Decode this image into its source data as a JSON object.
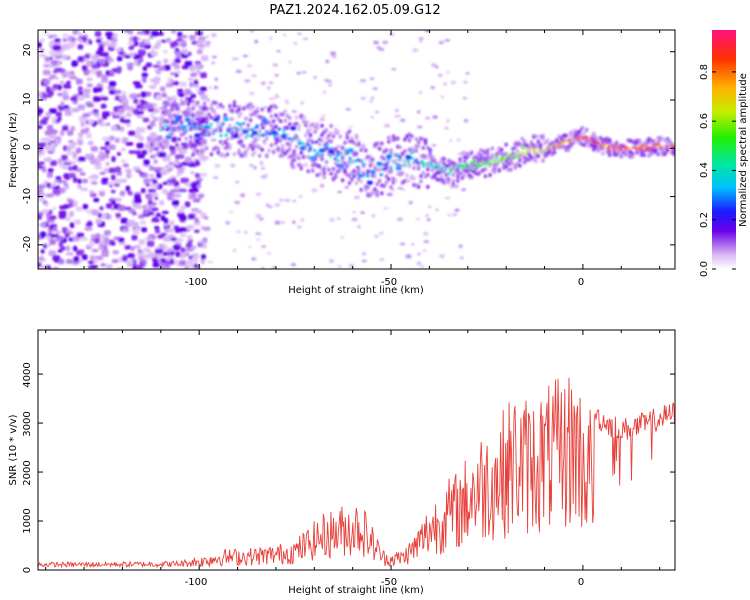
{
  "title": "PAZ1.2024.162.05.09.G12",
  "chart_data": [
    {
      "type": "heatmap",
      "xlabel": "Height of straight line (km)",
      "ylabel": "Frequency (Hz)",
      "xlim": [
        -142,
        24
      ],
      "ylim": [
        -25,
        24.5
      ],
      "xticks": [
        "-100",
        "-50",
        "0"
      ],
      "yticks": [
        "20",
        "10",
        "0",
        "-10",
        "-20"
      ],
      "colorbar": {
        "label": "Normalized spectral amplitude",
        "ticks": [
          "0.0",
          "0.2",
          "0.4",
          "0.6",
          "0.8"
        ],
        "range": [
          0,
          0.97
        ]
      },
      "ridge_track": [
        {
          "x": -110,
          "y": 5
        },
        {
          "x": -100,
          "y": 4
        },
        {
          "x": -90,
          "y": 4
        },
        {
          "x": -80,
          "y": 3.5
        },
        {
          "x": -70,
          "y": 0
        },
        {
          "x": -60,
          "y": -2
        },
        {
          "x": -55,
          "y": -5
        },
        {
          "x": -50,
          "y": -3
        },
        {
          "x": -45,
          "y": -2
        },
        {
          "x": -40,
          "y": -3
        },
        {
          "x": -35,
          "y": -5
        },
        {
          "x": -30,
          "y": -3.5
        },
        {
          "x": -25,
          "y": -3
        },
        {
          "x": -20,
          "y": -2
        },
        {
          "x": -15,
          "y": -0.5
        },
        {
          "x": -10,
          "y": 0
        },
        {
          "x": -5,
          "y": 1
        },
        {
          "x": 0,
          "y": 2.5
        },
        {
          "x": 5,
          "y": 0.5
        },
        {
          "x": 10,
          "y": 0
        },
        {
          "x": 15,
          "y": 0
        },
        {
          "x": 20,
          "y": 0.5
        },
        {
          "x": 24,
          "y": 0
        }
      ]
    },
    {
      "type": "line",
      "xlabel": "Height of straight line (km)",
      "ylabel": "SNR (10 * v/v)",
      "xlim": [
        -142,
        24
      ],
      "ylim": [
        0,
        4900
      ],
      "xticks": [
        "-100",
        "-50",
        "0"
      ],
      "yticks": [
        "4000",
        "3000",
        "2000",
        "1000",
        "0"
      ],
      "series_color": "#e8403a",
      "envelope": [
        {
          "x": -142,
          "y": 120
        },
        {
          "x": -120,
          "y": 130
        },
        {
          "x": -105,
          "y": 150
        },
        {
          "x": -100,
          "y": 250
        },
        {
          "x": -95,
          "y": 400
        },
        {
          "x": -85,
          "y": 450
        },
        {
          "x": -80,
          "y": 500
        },
        {
          "x": -75,
          "y": 600
        },
        {
          "x": -68,
          "y": 1100
        },
        {
          "x": -62,
          "y": 1300
        },
        {
          "x": -58,
          "y": 1400
        },
        {
          "x": -55,
          "y": 900
        },
        {
          "x": -52,
          "y": 400
        },
        {
          "x": -50,
          "y": 350
        },
        {
          "x": -47,
          "y": 400
        },
        {
          "x": -44,
          "y": 700
        },
        {
          "x": -40,
          "y": 1300
        },
        {
          "x": -35,
          "y": 1800
        },
        {
          "x": -32,
          "y": 2000
        },
        {
          "x": -28,
          "y": 2600
        },
        {
          "x": -22,
          "y": 3000
        },
        {
          "x": -18,
          "y": 3500
        },
        {
          "x": -14,
          "y": 3400
        },
        {
          "x": -10,
          "y": 3600
        },
        {
          "x": -5,
          "y": 3800
        },
        {
          "x": -2,
          "y": 4100
        },
        {
          "x": 0,
          "y": 3400
        },
        {
          "x": 5,
          "y": 3100
        },
        {
          "x": 10,
          "y": 2900
        },
        {
          "x": 15,
          "y": 3000
        },
        {
          "x": 20,
          "y": 3150
        },
        {
          "x": 24,
          "y": 3250
        }
      ]
    }
  ]
}
